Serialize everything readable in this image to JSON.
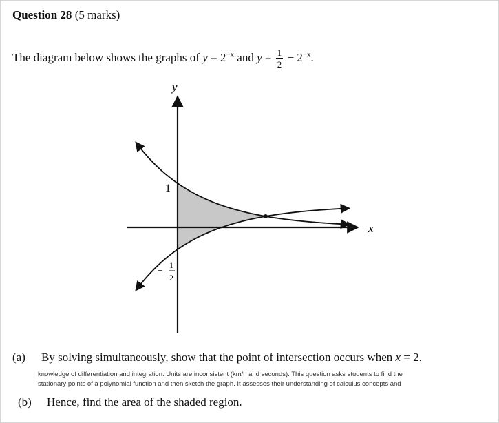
{
  "question": {
    "title": "Question 28",
    "marks": "(5 marks)"
  },
  "intro": {
    "text_before": "The diagram below shows the graphs of ",
    "eq1_y": "y",
    "eq1_rhs": " = 2",
    "eq1_exp": "−x",
    "and_text": " and ",
    "eq2_y": "y",
    "eq2_eq": " = ",
    "frac_num": "1",
    "frac_den": "2",
    "eq2_rest": " − 2",
    "eq2_exp": "−x",
    "end": "."
  },
  "graph": {
    "y_axis_label": "y",
    "x_axis_label": "x",
    "y_intercept_label": "1",
    "neg_label_sign": "−",
    "neg_label_num": "1",
    "neg_label_den": "2",
    "shaded_fill": "#c8c8c8",
    "curves": [
      {
        "equation": "y = 2^(−x)"
      },
      {
        "equation": "y = 1/2 − 2^(−x)"
      }
    ]
  },
  "parts": {
    "a_label": "(a)",
    "a_text_pre": "By solving simultaneously, show that the point of intersection occurs when ",
    "a_var": "x",
    "a_text_post": " = 2.",
    "strip1": "knowledge of differentiation and integration. Units are inconsistent (km/h and seconds). This question asks students to find the",
    "strip2": "stationary points of a polynomial function and then sketch the graph. It assesses their understanding of calculus concepts and",
    "b_label": "(b)",
    "b_text": "Hence, find the area of the shaded region."
  }
}
